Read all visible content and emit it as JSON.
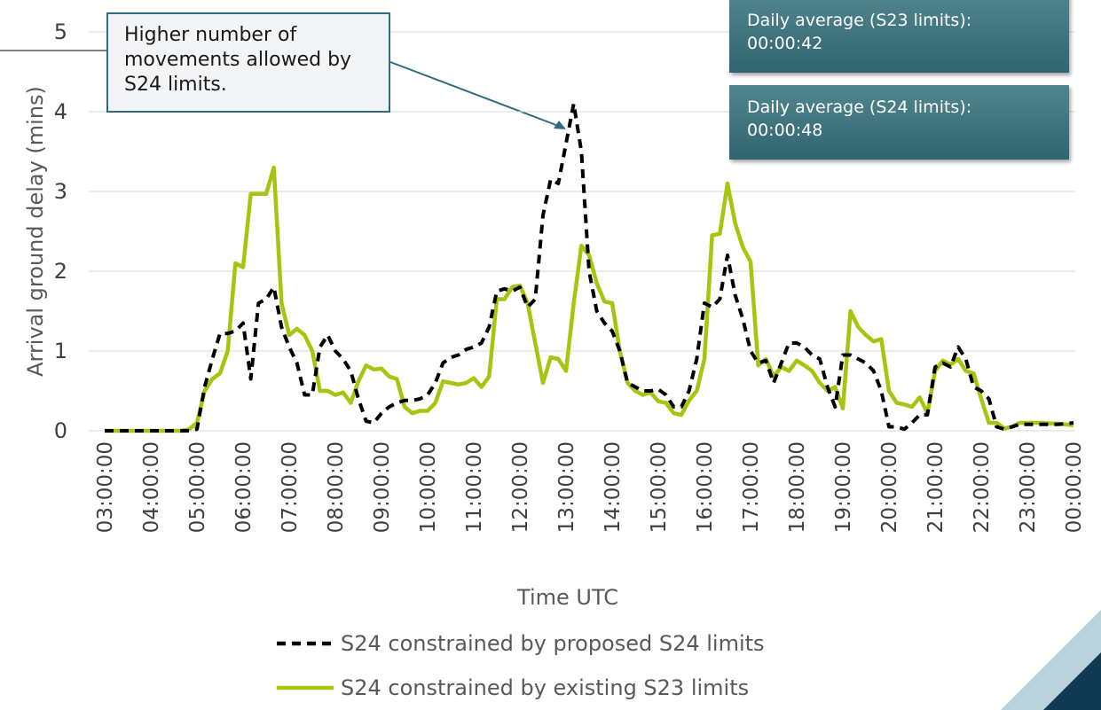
{
  "chart_data": {
    "type": "line",
    "y_label": "Arrival ground delay (mins)",
    "x_label": "Time UTC",
    "annotations": [
      "Higher number of movements allowed by S24 limits.",
      "Daily average (S23 limits): 00:00:42",
      "Daily average (S24 limits): 00:00:48"
    ],
    "categories": [
      "03:00:00",
      null,
      null,
      null,
      null,
      null,
      "04:00:00",
      null,
      null,
      null,
      null,
      null,
      "05:00:00",
      null,
      null,
      null,
      null,
      null,
      "06:00:00",
      null,
      null,
      null,
      null,
      null,
      "07:00:00",
      null,
      null,
      null,
      null,
      null,
      "08:00:00",
      null,
      null,
      null,
      null,
      null,
      "09:00:00",
      null,
      null,
      null,
      null,
      null,
      "10:00:00",
      null,
      null,
      null,
      null,
      null,
      "11:00:00",
      null,
      null,
      null,
      null,
      null,
      "12:00:00",
      null,
      null,
      null,
      null,
      null,
      "13:00:00",
      null,
      null,
      null,
      null,
      null,
      "14:00:00",
      null,
      null,
      null,
      null,
      null,
      "15:00:00",
      null,
      null,
      null,
      null,
      null,
      "16:00:00",
      null,
      null,
      null,
      null,
      null,
      "17:00:00",
      null,
      null,
      null,
      null,
      null,
      "18:00:00",
      null,
      null,
      null,
      null,
      null,
      "19:00:00",
      null,
      null,
      null,
      null,
      null,
      "20:00:00",
      null,
      null,
      null,
      null,
      null,
      "21:00:00",
      null,
      null,
      null,
      null,
      null,
      "22:00:00",
      null,
      null,
      null,
      null,
      null,
      "23:00:00",
      null,
      null,
      null,
      null,
      null,
      "00:00:00"
    ],
    "series": [
      {
        "name": "S24 constrained by proposed S24 limits",
        "color": "#000000",
        "dashed": true,
        "values": [
          0,
          0,
          0,
          0,
          0,
          0,
          0,
          0,
          0,
          0,
          0,
          0,
          0.02,
          0.55,
          0.9,
          1.22,
          1.22,
          1.25,
          1.35,
          0.65,
          1.6,
          1.65,
          1.8,
          1.3,
          1.05,
          0.85,
          0.45,
          0.45,
          1.05,
          1.2,
          1.0,
          0.9,
          0.75,
          0.4,
          0.12,
          0.1,
          0.22,
          0.3,
          0.35,
          0.38,
          0.38,
          0.4,
          0.45,
          0.6,
          0.85,
          0.92,
          0.95,
          1.02,
          1.05,
          1.1,
          1.3,
          1.75,
          1.78,
          1.75,
          1.8,
          1.55,
          1.65,
          2.7,
          3.15,
          3.1,
          3.6,
          4.1,
          3.5,
          2.0,
          1.5,
          1.35,
          1.25,
          1.0,
          0.6,
          0.55,
          0.5,
          0.5,
          0.52,
          0.45,
          0.3,
          0.3,
          0.5,
          0.9,
          1.6,
          1.55,
          1.65,
          2.2,
          1.7,
          1.4,
          1.0,
          0.85,
          0.88,
          0.6,
          0.85,
          1.1,
          1.1,
          1.05,
          0.95,
          0.9,
          0.55,
          0.3,
          0.95,
          0.95,
          0.9,
          0.85,
          0.75,
          0.5,
          0.05,
          0.05,
          0.02,
          0.1,
          0.2,
          0.2,
          0.8,
          0.85,
          0.8,
          1.05,
          0.9,
          0.55,
          0.5,
          0.4,
          0.05,
          0.02,
          0.05,
          0.08,
          0.08,
          0.08,
          0.08,
          0.08,
          0.08,
          0.09,
          0.1
        ]
      },
      {
        "name": "S24 constrained by existing S23 limits",
        "color": "#a9c40f",
        "dashed": false,
        "values": [
          0,
          0,
          0,
          0,
          0,
          0,
          0,
          0,
          0,
          0,
          0,
          0.02,
          0.1,
          0.5,
          0.65,
          0.72,
          1.0,
          2.1,
          2.05,
          2.97,
          2.97,
          2.97,
          3.3,
          1.6,
          1.2,
          1.28,
          1.2,
          1.0,
          0.5,
          0.5,
          0.45,
          0.48,
          0.35,
          0.62,
          0.82,
          0.77,
          0.78,
          0.68,
          0.65,
          0.3,
          0.22,
          0.25,
          0.25,
          0.35,
          0.62,
          0.6,
          0.58,
          0.6,
          0.66,
          0.55,
          0.68,
          1.65,
          1.65,
          1.8,
          1.82,
          1.6,
          1.1,
          0.6,
          0.92,
          0.9,
          0.75,
          1.6,
          2.32,
          2.2,
          1.85,
          1.62,
          1.6,
          1.0,
          0.6,
          0.5,
          0.45,
          0.48,
          0.37,
          0.35,
          0.22,
          0.2,
          0.38,
          0.5,
          0.9,
          2.45,
          2.47,
          3.1,
          2.6,
          2.3,
          2.12,
          0.82,
          0.9,
          0.68,
          0.8,
          0.75,
          0.88,
          0.82,
          0.75,
          0.6,
          0.5,
          0.55,
          0.28,
          1.5,
          1.3,
          1.2,
          1.12,
          1.15,
          0.5,
          0.35,
          0.33,
          0.3,
          0.42,
          0.22,
          0.75,
          0.88,
          0.83,
          0.9,
          0.75,
          0.72,
          0.4,
          0.1,
          0.1,
          0.03,
          0.05,
          0.1,
          0.1,
          0.1,
          0.1,
          0.09,
          0.09,
          0.08,
          0.07
        ]
      }
    ],
    "ylim": [
      0,
      5
    ],
    "yticks": [
      0,
      1,
      2,
      3,
      4,
      5
    ],
    "grid": true
  }
}
